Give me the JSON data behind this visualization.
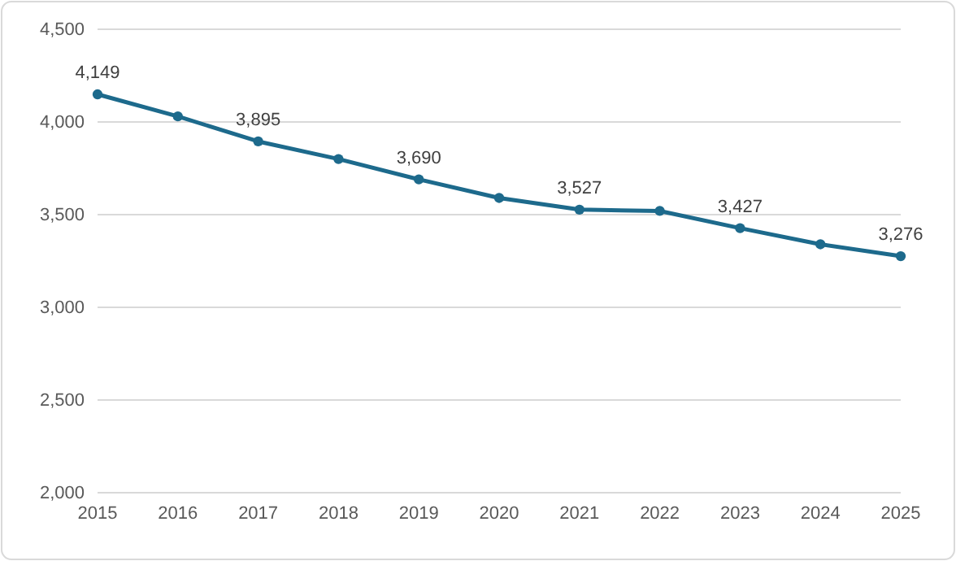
{
  "chart_data": {
    "type": "line",
    "categories": [
      "2015",
      "2016",
      "2017",
      "2018",
      "2019",
      "2020",
      "2021",
      "2022",
      "2023",
      "2024",
      "2025"
    ],
    "series": [
      {
        "color": "#1d6a8c",
        "values": [
          4149,
          4030,
          3895,
          3800,
          3690,
          3590,
          3527,
          3520,
          3427,
          3340,
          3276
        ],
        "value_labels": [
          "4,149",
          null,
          "3,895",
          null,
          "3,690",
          null,
          "3,527",
          null,
          "3,427",
          null,
          "3,276"
        ]
      }
    ],
    "ylim": [
      2000,
      4500
    ],
    "yticks": [
      {
        "value": 2000,
        "label": "2,000"
      },
      {
        "value": 2500,
        "label": "2,500"
      },
      {
        "value": 3000,
        "label": "3,000"
      },
      {
        "value": 3500,
        "label": "3,500"
      },
      {
        "value": 4000,
        "label": "4,000"
      },
      {
        "value": 4500,
        "label": "4,500"
      }
    ],
    "grid": "y",
    "marker": "circle",
    "line_style": "solid"
  }
}
